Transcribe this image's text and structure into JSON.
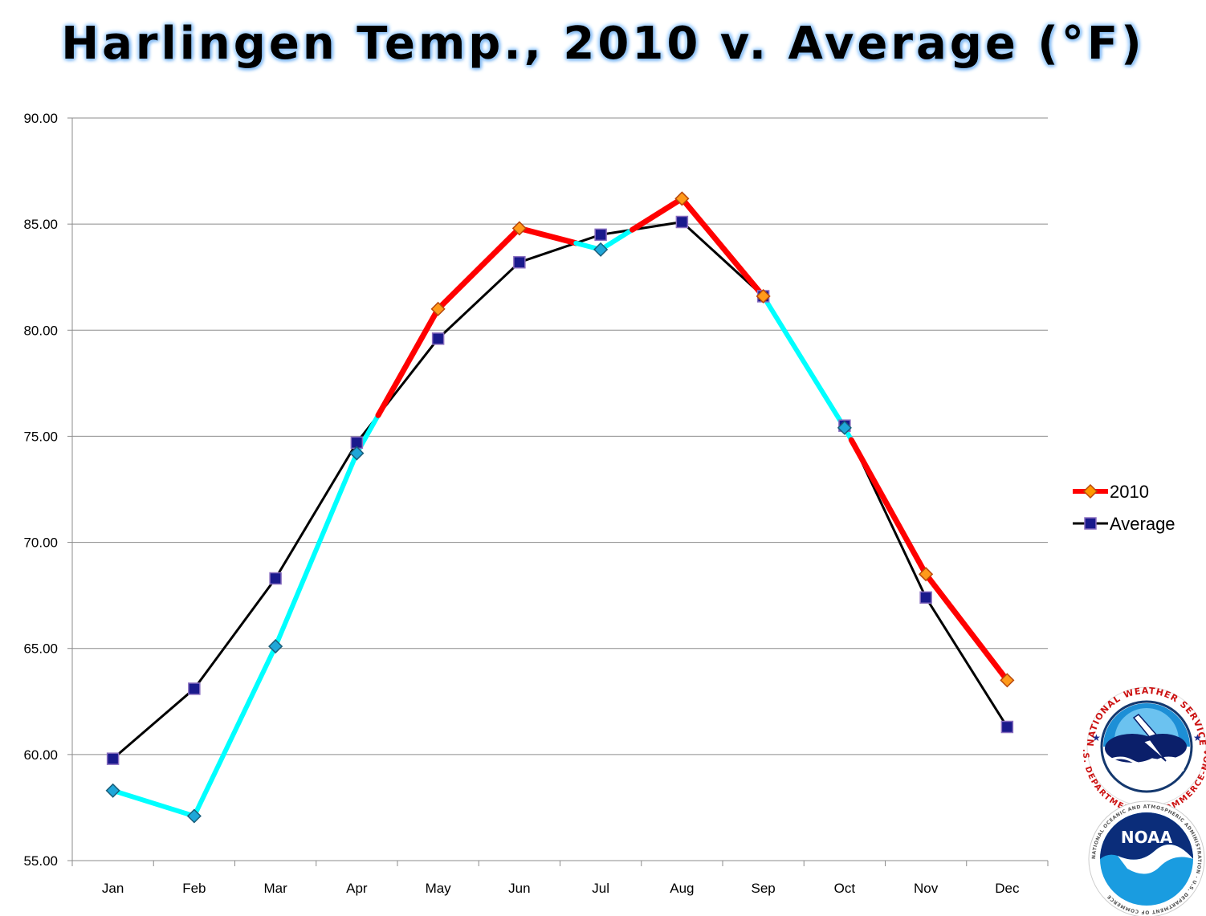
{
  "chart_data": {
    "type": "line",
    "title": "Harlingen Temp., 2010 v. Average (°F)",
    "xlabel": "",
    "ylabel": "",
    "categories": [
      "Jan",
      "Feb",
      "Mar",
      "Apr",
      "May",
      "Jun",
      "Jul",
      "Aug",
      "Sep",
      "Oct",
      "Nov",
      "Dec"
    ],
    "ylim": [
      55,
      90
    ],
    "yticks": [
      55,
      60,
      65,
      70,
      75,
      80,
      85,
      90
    ],
    "ytick_labels": [
      "55.00",
      "60.00",
      "65.00",
      "70.00",
      "75.00",
      "80.00",
      "85.00",
      "90.00"
    ],
    "grid": true,
    "legend_position": "right",
    "series": [
      {
        "name": "2010",
        "values": [
          58.3,
          57.1,
          65.1,
          74.2,
          81.0,
          84.8,
          83.8,
          86.2,
          81.6,
          75.4,
          68.5,
          63.5
        ],
        "color_above_average": "#ff0000",
        "color_below_average": "#00ffff",
        "marker": "diamond"
      },
      {
        "name": "Average",
        "values": [
          59.8,
          63.1,
          68.3,
          74.7,
          79.6,
          83.2,
          84.5,
          85.1,
          81.6,
          75.5,
          67.4,
          61.3
        ],
        "color": "#000000",
        "marker": "square"
      }
    ]
  },
  "logos": {
    "nws": {
      "ring_text_top": "NATIONAL WEATHER SERVICE",
      "ring_text_bottom": "U.S. DEPARTMENT OF COMMERCE-NOAA"
    },
    "noaa": {
      "center_text": "NOAA",
      "ring_text": "NATIONAL OCEANIC AND ATMOSPHERIC ADMINISTRATION · U.S. DEPARTMENT OF COMMERCE"
    }
  }
}
